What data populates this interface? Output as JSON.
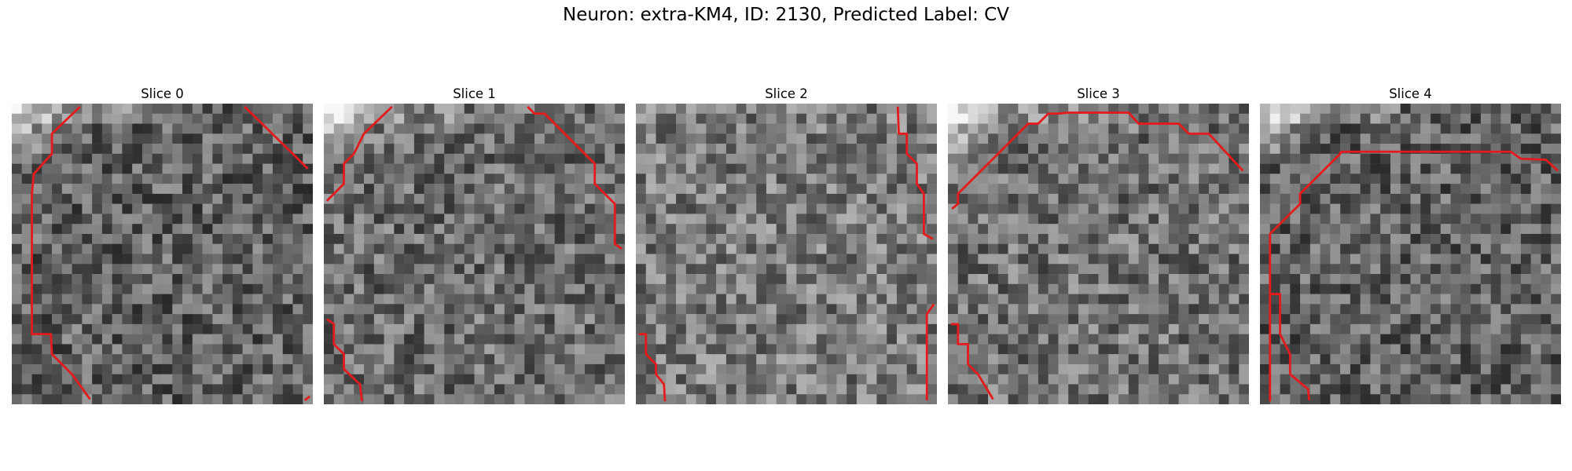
{
  "figure": {
    "title": "Neuron: extra-KM4, ID: 2130, Predicted Label: CV",
    "contour_color": "#e41a1c",
    "panels": [
      {
        "title": "Slice 0",
        "seed": 11,
        "brightness": 0.38,
        "bright_corner": "top-left"
      },
      {
        "title": "Slice 1",
        "seed": 23,
        "brightness": 0.42,
        "bright_corner": "top-left"
      },
      {
        "title": "Slice 2",
        "seed": 37,
        "brightness": 0.48,
        "bright_corner": "none"
      },
      {
        "title": "Slice 3",
        "seed": 41,
        "brightness": 0.44,
        "bright_corner": "top-left"
      },
      {
        "title": "Slice 4",
        "seed": 59,
        "brightness": 0.38,
        "bright_corner": "top-left"
      }
    ]
  }
}
